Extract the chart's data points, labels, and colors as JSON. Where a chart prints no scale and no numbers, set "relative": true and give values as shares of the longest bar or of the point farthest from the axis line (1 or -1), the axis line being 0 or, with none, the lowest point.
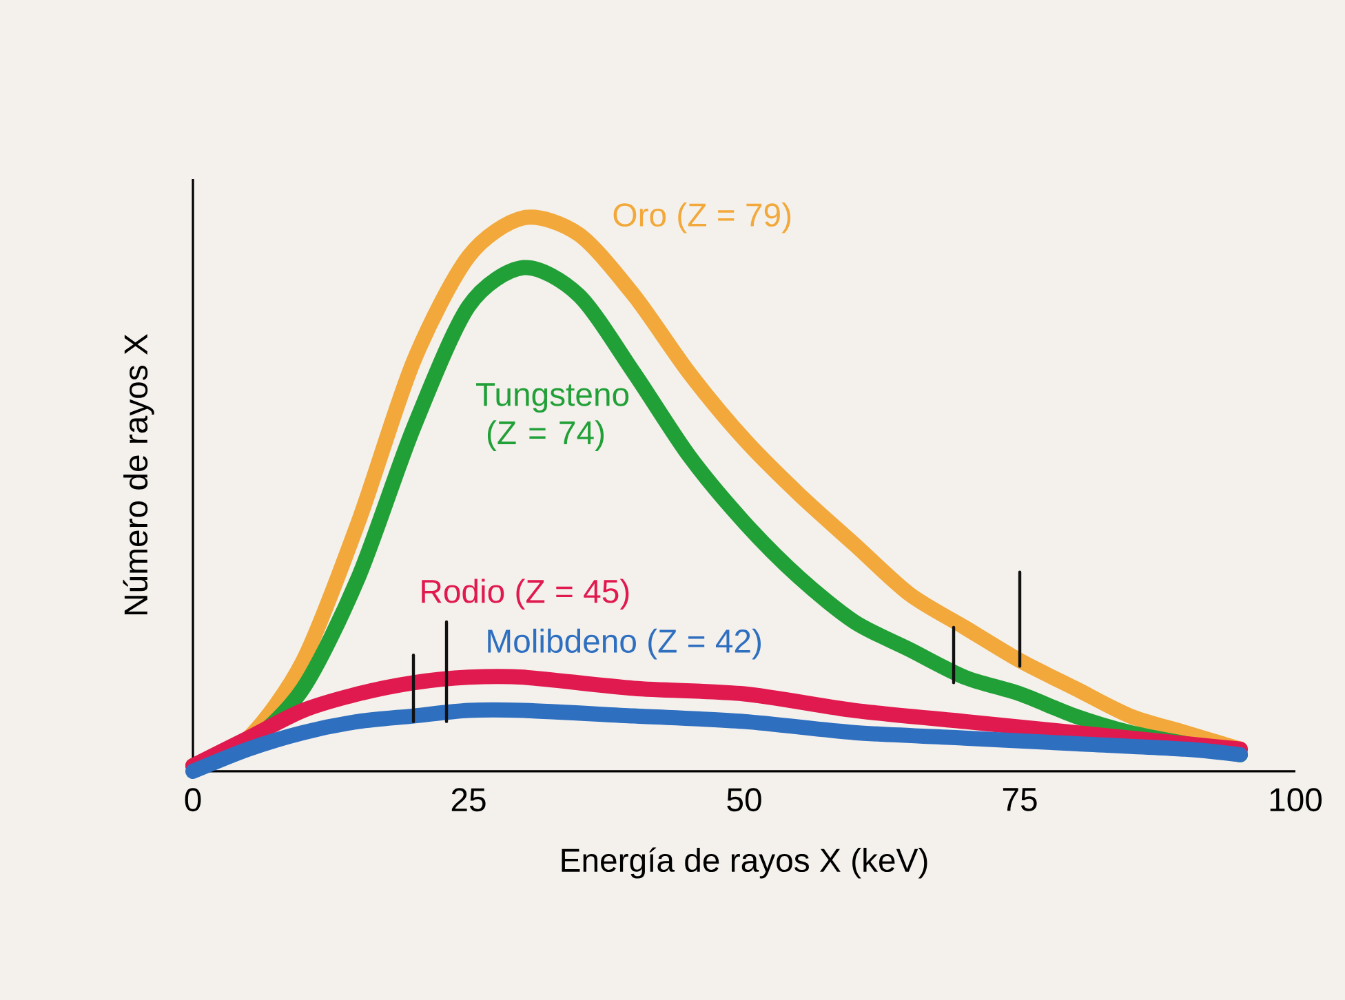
{
  "chart_data": {
    "type": "line",
    "relative": true,
    "xlabel": "Energía de rayos X (keV)",
    "ylabel": "Número de rayos X",
    "xlim": [
      0,
      100
    ],
    "xticks": [
      0,
      25,
      50,
      75,
      100
    ],
    "series": [
      {
        "name": "Oro (Z = 79)",
        "color": "#f2a83a",
        "x": [
          0,
          5,
          10,
          15,
          20,
          25,
          30,
          35,
          40,
          45,
          50,
          55,
          60,
          65,
          70,
          75,
          80,
          85,
          90,
          95
        ],
        "values": [
          0.01,
          0.06,
          0.2,
          0.45,
          0.74,
          0.93,
          1.0,
          0.97,
          0.86,
          0.72,
          0.6,
          0.5,
          0.41,
          0.32,
          0.26,
          0.2,
          0.15,
          0.1,
          0.07,
          0.04
        ]
      },
      {
        "name": "Tungsteno (Z = 74)",
        "color": "#22a038",
        "x": [
          0,
          5,
          10,
          15,
          20,
          25,
          30,
          35,
          40,
          45,
          50,
          55,
          60,
          65,
          70,
          75,
          80,
          85,
          90,
          95
        ],
        "values": [
          0.01,
          0.05,
          0.15,
          0.35,
          0.62,
          0.84,
          0.91,
          0.86,
          0.72,
          0.57,
          0.45,
          0.35,
          0.27,
          0.22,
          0.17,
          0.14,
          0.1,
          0.07,
          0.05,
          0.03
        ]
      },
      {
        "name": "Rodio (Z = 45)",
        "color": "#e01a4f",
        "x": [
          0,
          5,
          10,
          15,
          20,
          25,
          30,
          40,
          50,
          60,
          70,
          80,
          90,
          95
        ],
        "values": [
          0.01,
          0.06,
          0.11,
          0.14,
          0.16,
          0.17,
          0.17,
          0.15,
          0.14,
          0.11,
          0.09,
          0.07,
          0.05,
          0.04
        ]
      },
      {
        "name": "Molibdeno (Z = 42)",
        "color": "#2f6fc0",
        "x": [
          0,
          5,
          10,
          15,
          20,
          25,
          30,
          40,
          50,
          60,
          70,
          80,
          90,
          95
        ],
        "values": [
          0.0,
          0.04,
          0.07,
          0.09,
          0.1,
          0.11,
          0.11,
          0.1,
          0.09,
          0.07,
          0.06,
          0.05,
          0.04,
          0.03
        ]
      },
      {
        "color": "#111111",
        "x": [
          20,
          20
        ],
        "values": [
          0.09,
          0.21
        ]
      },
      {
        "color": "#111111",
        "x": [
          23,
          23
        ],
        "values": [
          0.09,
          0.27
        ]
      },
      {
        "color": "#111111",
        "x": [
          69,
          69
        ],
        "values": [
          0.16,
          0.26
        ]
      },
      {
        "color": "#111111",
        "x": [
          75,
          75
        ],
        "values": [
          0.19,
          0.36
        ]
      }
    ]
  }
}
